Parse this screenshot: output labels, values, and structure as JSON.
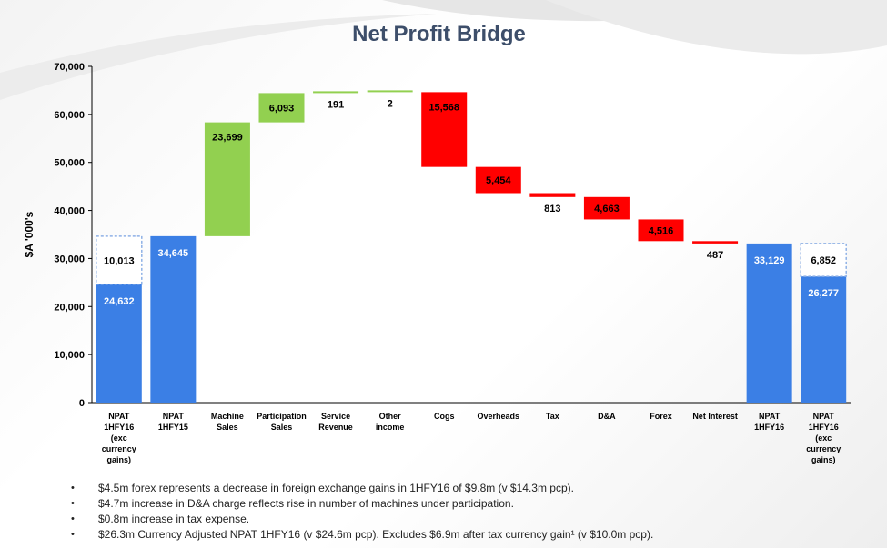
{
  "title": "Net Profit Bridge",
  "colors": {
    "blue": "#3b7fe5",
    "green": "#92d050",
    "red": "#ff0000",
    "axis": "#000000",
    "title": "#3d4e6a",
    "ghost_outline": "#8fb1e6"
  },
  "chart_data": {
    "type": "bar",
    "subtype": "waterfall",
    "ylabel": "$A '000's",
    "ylim": [
      0,
      70000
    ],
    "yticks": [
      "0",
      "10,000",
      "20,000",
      "30,000",
      "40,000",
      "50,000",
      "60,000",
      "70,000"
    ],
    "grid": false,
    "bars": [
      {
        "label": [
          "NPAT",
          "1HFY16",
          "(exc",
          "currency",
          "gains)"
        ],
        "kind": "total",
        "value": 24632,
        "display": "24,632",
        "stacked_dashed": {
          "value": 10013,
          "display": "10,013"
        }
      },
      {
        "label": [
          "NPAT",
          "1HFY15"
        ],
        "kind": "total",
        "value": 34645,
        "display": "34,645"
      },
      {
        "label": [
          "Machine",
          "Sales"
        ],
        "kind": "increase",
        "value": 23699,
        "display": "23,699"
      },
      {
        "label": [
          "Participation",
          "Sales"
        ],
        "kind": "increase",
        "value": 6093,
        "display": "6,093"
      },
      {
        "label": [
          "Service",
          "Revenue"
        ],
        "kind": "increase",
        "value": 191,
        "display": "191"
      },
      {
        "label": [
          "Other",
          "income"
        ],
        "kind": "increase",
        "value": 2,
        "display": "2"
      },
      {
        "label": [
          "Cogs"
        ],
        "kind": "decrease",
        "value": 15568,
        "display": "15,568"
      },
      {
        "label": [
          "Overheads"
        ],
        "kind": "decrease",
        "value": 5454,
        "display": "5,454"
      },
      {
        "label": [
          "Tax"
        ],
        "kind": "decrease",
        "value": 813,
        "display": "813"
      },
      {
        "label": [
          "D&A"
        ],
        "kind": "decrease",
        "value": 4663,
        "display": "4,663"
      },
      {
        "label": [
          "Forex"
        ],
        "kind": "decrease",
        "value": 4516,
        "display": "4,516"
      },
      {
        "label": [
          "Net Interest"
        ],
        "kind": "decrease",
        "value": 487,
        "display": "487"
      },
      {
        "label": [
          "NPAT",
          "1HFY16"
        ],
        "kind": "total",
        "value": 33129,
        "display": "33,129"
      },
      {
        "label": [
          "NPAT",
          "1HFY16",
          "(exc",
          "currency",
          "gains)"
        ],
        "kind": "total",
        "value": 26277,
        "display": "26,277",
        "stacked_dashed": {
          "value": 6852,
          "display": "6,852"
        }
      }
    ]
  },
  "notes": [
    "$4.5m forex represents a decrease in foreign exchange gains in 1HFY16 of $9.8m (v $14.3m pcp).",
    "$4.7m increase in D&A charge reflects rise in number of machines under participation.",
    "$0.8m increase in tax expense.",
    "$26.3m Currency Adjusted NPAT 1HFY16 (v $24.6m pcp). Excludes $6.9m after tax currency gain¹ (v $10.0m pcp)."
  ]
}
